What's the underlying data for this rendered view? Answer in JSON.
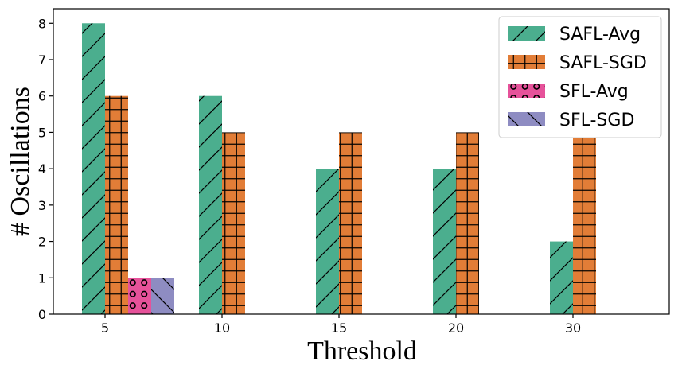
{
  "chart_data": {
    "type": "bar",
    "title": "",
    "xlabel": "Threshold",
    "ylabel": "# Oscillations",
    "categories": [
      "5",
      "10",
      "15",
      "20",
      "30"
    ],
    "ylim": [
      0,
      8.4
    ],
    "yticks": [
      0,
      1,
      2,
      3,
      4,
      5,
      6,
      7,
      8
    ],
    "legend_position": "top-right",
    "grid": false,
    "series": [
      {
        "name": "SAFL-Avg",
        "values": [
          8,
          6,
          4,
          4,
          2
        ],
        "color": "#4BAE8E",
        "hatch": "forward-slash"
      },
      {
        "name": "SAFL-SGD",
        "values": [
          6,
          5,
          5,
          5,
          5
        ],
        "color": "#E27D37",
        "hatch": "grid"
      },
      {
        "name": "SFL-Avg",
        "values": [
          1,
          0,
          0,
          0,
          0
        ],
        "color": "#E6529A",
        "hatch": "circles"
      },
      {
        "name": "SFL-SGD",
        "values": [
          1,
          0,
          0,
          0,
          0
        ],
        "color": "#8E8CC2",
        "hatch": "back-slash"
      }
    ]
  }
}
